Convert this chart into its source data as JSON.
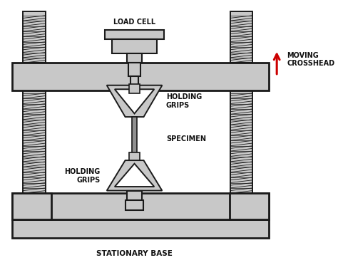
{
  "bg_color": "#ffffff",
  "gray_fill": "#c8c8c8",
  "dark_outline": "#1a1a1a",
  "red_arrow": "#cc0000",
  "labels": {
    "load_cell": "LOAD CELL",
    "moving_crosshead": "MOVING\nCROSSHEAD",
    "holding_grips_top": "HOLDING\nGRIPS",
    "specimen": "SPECIMEN",
    "holding_grips_bot": "HOLDING\nGRIPS",
    "stationary_base": "STATIONARY BASE"
  },
  "label_fontsize": 7.0,
  "label_fontweight": "bold"
}
